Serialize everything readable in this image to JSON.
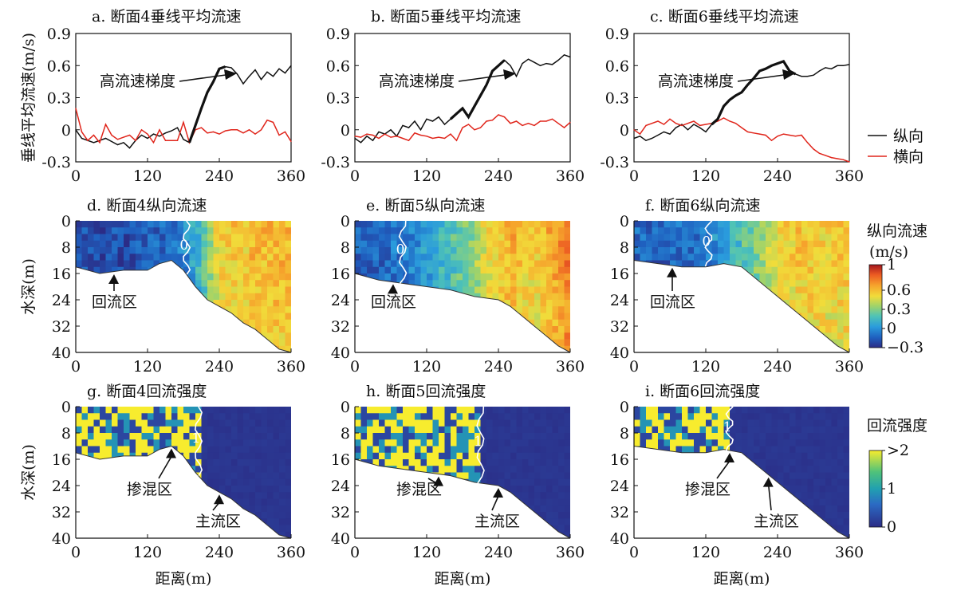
{
  "chart_data": [
    {
      "id": "a",
      "type": "line",
      "title": "a. 断面4垂线平均流速",
      "ylabel": "垂线平均流速(m/s)",
      "xlim": [
        0,
        360
      ],
      "ylim": [
        -0.3,
        0.9
      ],
      "xticks": [
        0,
        120,
        240,
        360
      ],
      "yticks": [
        -0.3,
        0,
        0.3,
        0.6,
        0.9
      ],
      "annotation": "高流速梯度",
      "series": [
        {
          "name": "纵向",
          "color": "#111111",
          "x": [
            0,
            10,
            20,
            30,
            40,
            50,
            60,
            70,
            80,
            90,
            100,
            110,
            120,
            130,
            140,
            150,
            160,
            170,
            180,
            190,
            200,
            210,
            220,
            230,
            240,
            250,
            260,
            270,
            280,
            290,
            300,
            310,
            320,
            330,
            340,
            350,
            360
          ],
          "y": [
            0.0,
            -0.08,
            -0.1,
            -0.12,
            -0.1,
            -0.08,
            -0.11,
            -0.14,
            -0.12,
            -0.17,
            -0.1,
            -0.05,
            -0.08,
            -0.04,
            -0.06,
            -0.03,
            -0.01,
            0.02,
            -0.09,
            -0.12,
            0.04,
            0.2,
            0.35,
            0.45,
            0.57,
            0.59,
            0.58,
            0.52,
            0.43,
            0.5,
            0.56,
            0.47,
            0.54,
            0.5,
            0.57,
            0.53,
            0.6
          ]
        },
        {
          "name": "横向",
          "color": "#e0251b",
          "x": [
            0,
            10,
            20,
            30,
            40,
            50,
            60,
            70,
            80,
            90,
            100,
            110,
            120,
            130,
            140,
            150,
            160,
            170,
            180,
            190,
            200,
            210,
            220,
            230,
            240,
            250,
            260,
            270,
            280,
            290,
            300,
            310,
            320,
            330,
            340,
            350,
            360
          ],
          "y": [
            0.2,
            -0.02,
            -0.1,
            -0.05,
            -0.12,
            0.05,
            -0.05,
            -0.09,
            -0.07,
            -0.05,
            -0.1,
            0.0,
            -0.04,
            -0.12,
            0.0,
            -0.1,
            -0.1,
            -0.1,
            0.07,
            -0.12,
            0.0,
            0.02,
            -0.03,
            -0.02,
            -0.04,
            -0.01,
            0.0,
            0.0,
            -0.03,
            0.0,
            -0.04,
            0.0,
            0.09,
            0.07,
            -0.05,
            -0.02,
            -0.11
          ]
        }
      ]
    },
    {
      "id": "b",
      "type": "line",
      "title": "b. 断面5垂线平均流速",
      "xlim": [
        0,
        360
      ],
      "ylim": [
        -0.3,
        0.9
      ],
      "xticks": [
        0,
        120,
        240,
        360
      ],
      "yticks": [
        -0.3,
        0,
        0.3,
        0.6,
        0.9
      ],
      "annotation": "高流速梯度",
      "series": [
        {
          "name": "纵向",
          "color": "#111111",
          "x": [
            0,
            10,
            20,
            30,
            40,
            50,
            60,
            70,
            80,
            90,
            100,
            110,
            120,
            130,
            140,
            150,
            160,
            170,
            180,
            190,
            200,
            210,
            220,
            230,
            240,
            250,
            260,
            270,
            280,
            290,
            300,
            310,
            320,
            330,
            340,
            350,
            360
          ],
          "y": [
            -0.08,
            -0.12,
            -0.06,
            -0.1,
            -0.02,
            -0.04,
            0.0,
            -0.06,
            0.04,
            0.02,
            0.08,
            0.0,
            0.1,
            0.08,
            0.12,
            0.05,
            0.1,
            0.15,
            0.2,
            0.12,
            0.22,
            0.32,
            0.42,
            0.55,
            0.6,
            0.65,
            0.6,
            0.5,
            0.62,
            0.66,
            0.63,
            0.6,
            0.62,
            0.61,
            0.65,
            0.7,
            0.68
          ]
        },
        {
          "name": "横向",
          "color": "#e0251b",
          "x": [
            0,
            10,
            20,
            30,
            40,
            50,
            60,
            70,
            80,
            90,
            100,
            110,
            120,
            130,
            140,
            150,
            160,
            170,
            180,
            190,
            200,
            210,
            220,
            230,
            240,
            250,
            260,
            270,
            280,
            290,
            300,
            310,
            320,
            330,
            340,
            350,
            360
          ],
          "y": [
            -0.06,
            -0.07,
            -0.04,
            -0.05,
            -0.08,
            -0.04,
            -0.07,
            -0.06,
            -0.08,
            -0.1,
            -0.03,
            -0.05,
            -0.06,
            -0.08,
            -0.07,
            -0.08,
            -0.04,
            -0.1,
            0.02,
            0.05,
            0.0,
            0.02,
            0.08,
            0.09,
            0.14,
            0.12,
            0.06,
            0.08,
            0.04,
            0.06,
            0.04,
            0.08,
            0.08,
            0.1,
            0.06,
            0.02,
            0.07
          ]
        }
      ]
    },
    {
      "id": "c",
      "type": "line",
      "title": "c. 断面6垂线平均流速",
      "xlim": [
        0,
        360
      ],
      "ylim": [
        -0.3,
        0.9
      ],
      "xticks": [
        0,
        120,
        240,
        360
      ],
      "yticks": [
        -0.3,
        0,
        0.3,
        0.6,
        0.9
      ],
      "annotation": "高流速梯度",
      "series": [
        {
          "name": "纵向",
          "color": "#111111",
          "x": [
            0,
            10,
            20,
            30,
            40,
            50,
            60,
            70,
            80,
            90,
            100,
            110,
            120,
            130,
            140,
            150,
            160,
            170,
            180,
            190,
            200,
            210,
            220,
            230,
            240,
            250,
            260,
            270,
            280,
            290,
            300,
            310,
            320,
            330,
            340,
            350,
            360
          ],
          "y": [
            -0.08,
            -0.06,
            -0.1,
            -0.08,
            -0.05,
            -0.02,
            -0.04,
            0.02,
            0.05,
            0.0,
            0.05,
            0.02,
            -0.02,
            0.05,
            0.1,
            0.22,
            0.28,
            0.32,
            0.35,
            0.42,
            0.48,
            0.55,
            0.57,
            0.6,
            0.62,
            0.64,
            0.55,
            0.52,
            0.5,
            0.5,
            0.51,
            0.55,
            0.58,
            0.57,
            0.6,
            0.6,
            0.61
          ]
        },
        {
          "name": "横向",
          "color": "#e0251b",
          "x": [
            0,
            10,
            20,
            30,
            40,
            50,
            60,
            70,
            80,
            90,
            100,
            110,
            120,
            130,
            140,
            150,
            160,
            170,
            180,
            190,
            200,
            210,
            220,
            230,
            240,
            250,
            260,
            270,
            280,
            290,
            300,
            310,
            320,
            330,
            340,
            350,
            360
          ],
          "y": [
            0.0,
            -0.04,
            0.04,
            0.06,
            0.08,
            0.05,
            0.1,
            0.06,
            0.04,
            0.06,
            0.08,
            0.04,
            0.05,
            0.06,
            0.08,
            0.11,
            0.08,
            0.06,
            0.02,
            -0.02,
            -0.03,
            -0.04,
            -0.05,
            -0.1,
            -0.06,
            -0.04,
            -0.05,
            -0.06,
            -0.05,
            -0.12,
            -0.18,
            -0.22,
            -0.24,
            -0.26,
            -0.27,
            -0.28,
            -0.3
          ]
        }
      ]
    },
    {
      "id": "d",
      "type": "heatmap",
      "title": "d. 断面4纵向流速",
      "ylabel": "水深(m)",
      "xlim": [
        0,
        360
      ],
      "ylim": [
        40,
        0
      ],
      "xticks": [
        0,
        120,
        240,
        360
      ],
      "yticks": [
        0,
        8,
        16,
        24,
        32,
        40
      ],
      "contour_label": "0",
      "annotation": "回流区",
      "bed": {
        "x": [
          0,
          40,
          80,
          120,
          140,
          160,
          180,
          200,
          220,
          240,
          260,
          280,
          300,
          320,
          340,
          360
        ],
        "depth": [
          14,
          16,
          15,
          15,
          13,
          12,
          15,
          20,
          24,
          26,
          28,
          31,
          33,
          36,
          39,
          40
        ]
      },
      "velocity_profile": {
        "x": [
          0,
          40,
          80,
          120,
          160,
          180,
          200,
          220,
          240,
          260,
          280,
          300,
          320,
          340,
          360
        ],
        "v": [
          -0.15,
          -0.2,
          -0.18,
          -0.15,
          -0.1,
          -0.02,
          0.1,
          0.3,
          0.55,
          0.6,
          0.55,
          0.65,
          0.6,
          0.65,
          0.6
        ]
      }
    },
    {
      "id": "e",
      "type": "heatmap",
      "title": "e. 断面5纵向流速",
      "xlim": [
        0,
        360
      ],
      "ylim": [
        40,
        0
      ],
      "xticks": [
        0,
        120,
        240,
        360
      ],
      "yticks": [
        0,
        8,
        16,
        24,
        32,
        40
      ],
      "contour_label": "0",
      "annotation": "回流区",
      "bed": {
        "x": [
          0,
          40,
          80,
          120,
          160,
          200,
          240,
          260,
          280,
          300,
          320,
          340,
          360
        ],
        "depth": [
          16,
          18,
          19,
          20,
          21,
          23,
          24,
          26,
          29,
          32,
          35,
          38,
          40
        ]
      },
      "velocity_profile": {
        "x": [
          0,
          40,
          80,
          120,
          160,
          200,
          220,
          240,
          260,
          280,
          300,
          320,
          340,
          360
        ],
        "v": [
          -0.15,
          -0.1,
          -0.05,
          0.05,
          0.2,
          0.35,
          0.5,
          0.55,
          0.65,
          0.6,
          0.55,
          0.65,
          0.7,
          0.8
        ]
      }
    },
    {
      "id": "f",
      "type": "heatmap",
      "title": "f. 断面6纵向流速",
      "xlim": [
        0,
        360
      ],
      "ylim": [
        40,
        0
      ],
      "xticks": [
        0,
        120,
        240,
        360
      ],
      "yticks": [
        0,
        8,
        16,
        24,
        32,
        40
      ],
      "contour_label": "0",
      "annotation": "回流区",
      "bed": {
        "x": [
          0,
          40,
          80,
          120,
          150,
          180,
          200,
          220,
          240,
          260,
          280,
          300,
          320,
          340,
          360
        ],
        "depth": [
          12,
          13,
          14,
          14,
          13,
          14,
          17,
          20,
          23,
          26,
          29,
          32,
          35,
          38,
          40
        ]
      },
      "velocity_profile": {
        "x": [
          0,
          40,
          80,
          120,
          160,
          200,
          240,
          280,
          320,
          360
        ],
        "v": [
          -0.1,
          -0.15,
          -0.1,
          -0.05,
          0.1,
          0.3,
          0.5,
          0.6,
          0.55,
          0.6
        ]
      }
    },
    {
      "id": "g",
      "type": "heatmap",
      "title": "g. 断面4回流强度",
      "ylabel": "水深(m)",
      "xlim": [
        0,
        360
      ],
      "ylim": [
        40,
        0
      ],
      "xticks": [
        0,
        120,
        240,
        360
      ],
      "yticks": [
        0,
        8,
        16,
        24,
        32,
        40
      ],
      "contour_label": "1",
      "annotations": [
        "掺混区",
        "主流区"
      ],
      "bed": {
        "x": [
          0,
          40,
          80,
          120,
          140,
          160,
          180,
          200,
          220,
          240,
          260,
          280,
          300,
          320,
          340,
          360
        ],
        "depth": [
          14,
          16,
          15,
          15,
          13,
          12,
          15,
          20,
          24,
          26,
          28,
          31,
          33,
          36,
          39,
          40
        ]
      },
      "mix_boundary_x": 205
    },
    {
      "id": "h",
      "type": "heatmap",
      "title": "h. 断面5回流强度",
      "xlim": [
        0,
        360
      ],
      "ylim": [
        40,
        0
      ],
      "xticks": [
        0,
        120,
        240,
        360
      ],
      "yticks": [
        0,
        8,
        16,
        24,
        32,
        40
      ],
      "contour_label": "1",
      "annotations": [
        "掺混区",
        "主流区"
      ],
      "bed": {
        "x": [
          0,
          40,
          80,
          120,
          160,
          200,
          240,
          260,
          280,
          300,
          320,
          340,
          360
        ],
        "depth": [
          16,
          18,
          19,
          20,
          21,
          23,
          24,
          26,
          29,
          32,
          35,
          38,
          40
        ]
      },
      "mix_boundary_x": 210
    },
    {
      "id": "i",
      "type": "heatmap",
      "title": "i. 断面6回流强度",
      "xlim": [
        0,
        360
      ],
      "ylim": [
        40,
        0
      ],
      "xticks": [
        0,
        120,
        240,
        360
      ],
      "yticks": [
        0,
        8,
        16,
        24,
        32,
        40
      ],
      "contour_label": "1",
      "annotations": [
        "掺混区",
        "主流区"
      ],
      "bed": {
        "x": [
          0,
          40,
          80,
          120,
          150,
          180,
          200,
          220,
          240,
          260,
          280,
          300,
          320,
          340,
          360
        ],
        "depth": [
          12,
          13,
          14,
          14,
          13,
          14,
          17,
          20,
          23,
          26,
          29,
          32,
          35,
          38,
          40
        ]
      },
      "mix_boundary_x": 160
    }
  ],
  "legend": {
    "items": [
      {
        "label": "纵向",
        "color": "#111111"
      },
      {
        "label": "横向",
        "color": "#e0251b"
      }
    ]
  },
  "colorbar1": {
    "title1": "纵向流速",
    "title2": "(m/s)",
    "ticks": [
      "1",
      "0.6",
      "0.3",
      "0",
      "−0.3"
    ],
    "range": [
      -0.3,
      1.0
    ]
  },
  "colorbar2": {
    "title": "回流强度",
    "ticks": [
      ">2",
      "1",
      "0"
    ],
    "range": [
      0,
      2
    ]
  },
  "common_xlabel": "距离(m)"
}
